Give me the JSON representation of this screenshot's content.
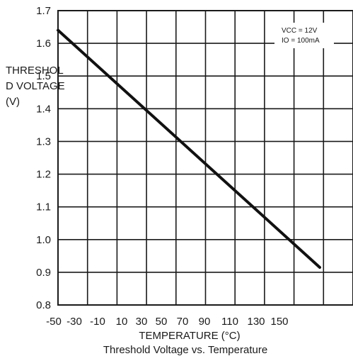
{
  "chart_data": {
    "type": "line",
    "title": "Threshold Voltage vs. Temperature",
    "xlabel": "TEMPERATURE (°C)",
    "ylabel_lines": [
      "THRESHOL",
      "D VOLTAGE",
      "(V)"
    ],
    "annotations": [
      "VCC = 12V",
      "IO = 100mA"
    ],
    "x_ticks": [
      "-50",
      "-30",
      "-10",
      "10",
      "30",
      "50",
      "70",
      "90",
      "110",
      "130",
      "150"
    ],
    "y_ticks": [
      "1.7",
      "1.6",
      "1.5",
      "1.4",
      "1.3",
      "1.2",
      "1.1",
      "1.0",
      "0.9",
      "0.8"
    ],
    "xlim": [
      -50,
      150
    ],
    "ylim": [
      0.8,
      1.7
    ],
    "grid": true,
    "series": [
      {
        "x": [
          -50,
          150
        ],
        "y": [
          1.64,
          0.915
        ]
      }
    ]
  }
}
